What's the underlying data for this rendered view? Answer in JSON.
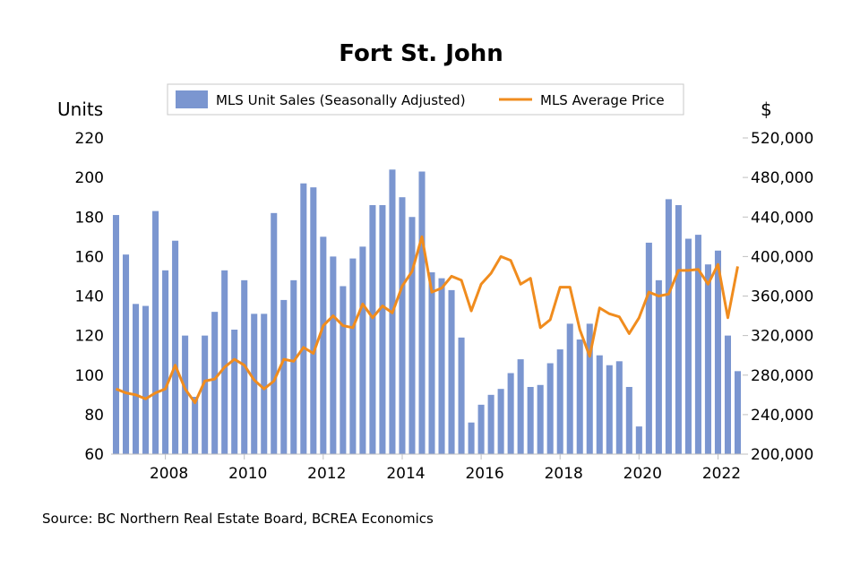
{
  "chart_data": {
    "type": "bar",
    "title": "Fort St. John",
    "y_left_unit": "Units",
    "y_right_unit": "$",
    "y_left_lim": [
      60,
      220
    ],
    "y_left_ticks": [
      "60",
      "80",
      "100",
      "120",
      "140",
      "160",
      "180",
      "200",
      "220"
    ],
    "y_right_lim": [
      200000,
      520000
    ],
    "y_right_ticks": [
      "200,000",
      "240,000",
      "280,000",
      "320,000",
      "360,000",
      "400,000",
      "440,000",
      "480,000",
      "520,000"
    ],
    "x_tick_labels": [
      "2008",
      "2010",
      "2012",
      "2014",
      "2016",
      "2018",
      "2020",
      "2022"
    ],
    "x_tick_years": [
      2008,
      2010,
      2012,
      2014,
      2016,
      2018,
      2020,
      2022
    ],
    "x_start": 2006.625,
    "period": 0.25,
    "grid": false,
    "legend_position": "top",
    "series": [
      {
        "name": "MLS Unit Sales (Seasonally Adjusted)",
        "type": "bar",
        "axis": "left",
        "color": "#7b96d0",
        "values": [
          181,
          161,
          136,
          135,
          183,
          153,
          168,
          120,
          89,
          120,
          132,
          153,
          123,
          148,
          131,
          131,
          182,
          138,
          148,
          197,
          195,
          170,
          160,
          145,
          159,
          165,
          186,
          186,
          204,
          190,
          180,
          203,
          152,
          149,
          143,
          119,
          76,
          85,
          90,
          93,
          101,
          108,
          94,
          95,
          106,
          113,
          126,
          118,
          126,
          110,
          105,
          107,
          94,
          74,
          167,
          148,
          189,
          186,
          169,
          171,
          156,
          163,
          120,
          102
        ]
      },
      {
        "name": "MLS Average Price",
        "type": "line",
        "axis": "right",
        "color": "#f08c1e",
        "values": [
          266000,
          262000,
          260000,
          256000,
          262000,
          266000,
          290000,
          266000,
          252000,
          274000,
          276000,
          288000,
          296000,
          290000,
          275000,
          266000,
          274000,
          296000,
          294000,
          308000,
          302000,
          330000,
          340000,
          330000,
          328000,
          352000,
          338000,
          350000,
          343000,
          370000,
          385000,
          420000,
          364000,
          368000,
          380000,
          376000,
          345000,
          372000,
          383000,
          400000,
          396000,
          372000,
          378000,
          328000,
          336000,
          369000,
          369000,
          326000,
          299000,
          348000,
          342000,
          339000,
          322000,
          338000,
          364000,
          360000,
          362000,
          386000,
          386000,
          387000,
          372000,
          392000,
          338000,
          390000
        ]
      }
    ]
  }
}
